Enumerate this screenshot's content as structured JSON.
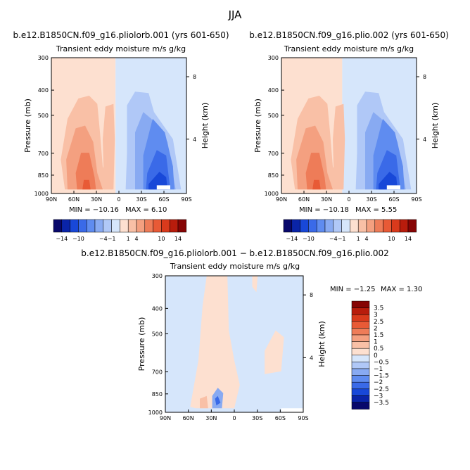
{
  "figure_title": "JJA",
  "chart_data": [
    {
      "type": "heatmap",
      "title": "b.e12.B1850CN.f09_g16.pliolorb.001 (yrs 601-650)",
      "subtitle": "Transient eddy moisture m/s g/kg",
      "xlabel": "",
      "ylabel": "Pressure (mb)",
      "y2label": "Height (km)",
      "x_ticks": [
        "90N",
        "60N",
        "30N",
        "0",
        "30S",
        "60S",
        "90S"
      ],
      "y_ticks": [
        "300",
        "400",
        "500",
        "700",
        "850",
        "1000"
      ],
      "y2_ticks": [
        "8",
        "4"
      ],
      "min_text": "MIN = −10.16",
      "max_text": "MAX =    6.10",
      "colorbar_labels": [
        "−14",
        "−10",
        "−4",
        "−1",
        "1",
        "4",
        "10",
        "14"
      ]
    },
    {
      "type": "heatmap",
      "title": "b.e12.B1850CN.f09_g16.plio.002 (yrs 601-650)",
      "subtitle": "Transient eddy moisture m/s g/kg",
      "xlabel": "",
      "ylabel": "Pressure (mb)",
      "y2label": "Height (km)",
      "x_ticks": [
        "90N",
        "60N",
        "30N",
        "0",
        "30S",
        "60S",
        "90S"
      ],
      "y_ticks": [
        "300",
        "400",
        "500",
        "700",
        "850",
        "1000"
      ],
      "y2_ticks": [
        "8",
        "4"
      ],
      "min_text": "MIN = −10.18",
      "max_text": "MAX =    5.55",
      "colorbar_labels": [
        "−14",
        "−10",
        "−4",
        "−1",
        "1",
        "4",
        "10",
        "14"
      ]
    },
    {
      "type": "heatmap",
      "title": "b.e12.B1850CN.f09_g16.pliolorb.001 − b.e12.B1850CN.f09_g16.plio.002",
      "subtitle": "Transient eddy moisture m/s g/kg",
      "xlabel": "",
      "ylabel": "Pressure (mb)",
      "y2label": "Height (km)",
      "x_ticks": [
        "90N",
        "60N",
        "30N",
        "0",
        "30S",
        "60S",
        "90S"
      ],
      "y_ticks": [
        "300",
        "400",
        "500",
        "700",
        "850",
        "1000"
      ],
      "y2_ticks": [
        "8",
        "4"
      ],
      "min_text": "MIN = −1.25",
      "max_text": "MAX =    1.30",
      "colorbar_labels": [
        "3.5",
        "3",
        "2.5",
        "2",
        "1.5",
        "1",
        "0.5",
        "0",
        "−0.5",
        "−1",
        "−1.5",
        "−2",
        "−2.5",
        "−3",
        "−3.5"
      ]
    }
  ],
  "colors": {
    "blues": [
      "#08086b",
      "#0a24a8",
      "#1848d8",
      "#3a6ae8",
      "#5f8cf0",
      "#88aaf2",
      "#b0c8f7",
      "#d6e6fb"
    ],
    "reds": [
      "#fde0d0",
      "#f9c0a6",
      "#f4a080",
      "#ee7c58",
      "#e85a36",
      "#d93a1c",
      "#b81c0c",
      "#860404"
    ],
    "frame": "#000000"
  }
}
